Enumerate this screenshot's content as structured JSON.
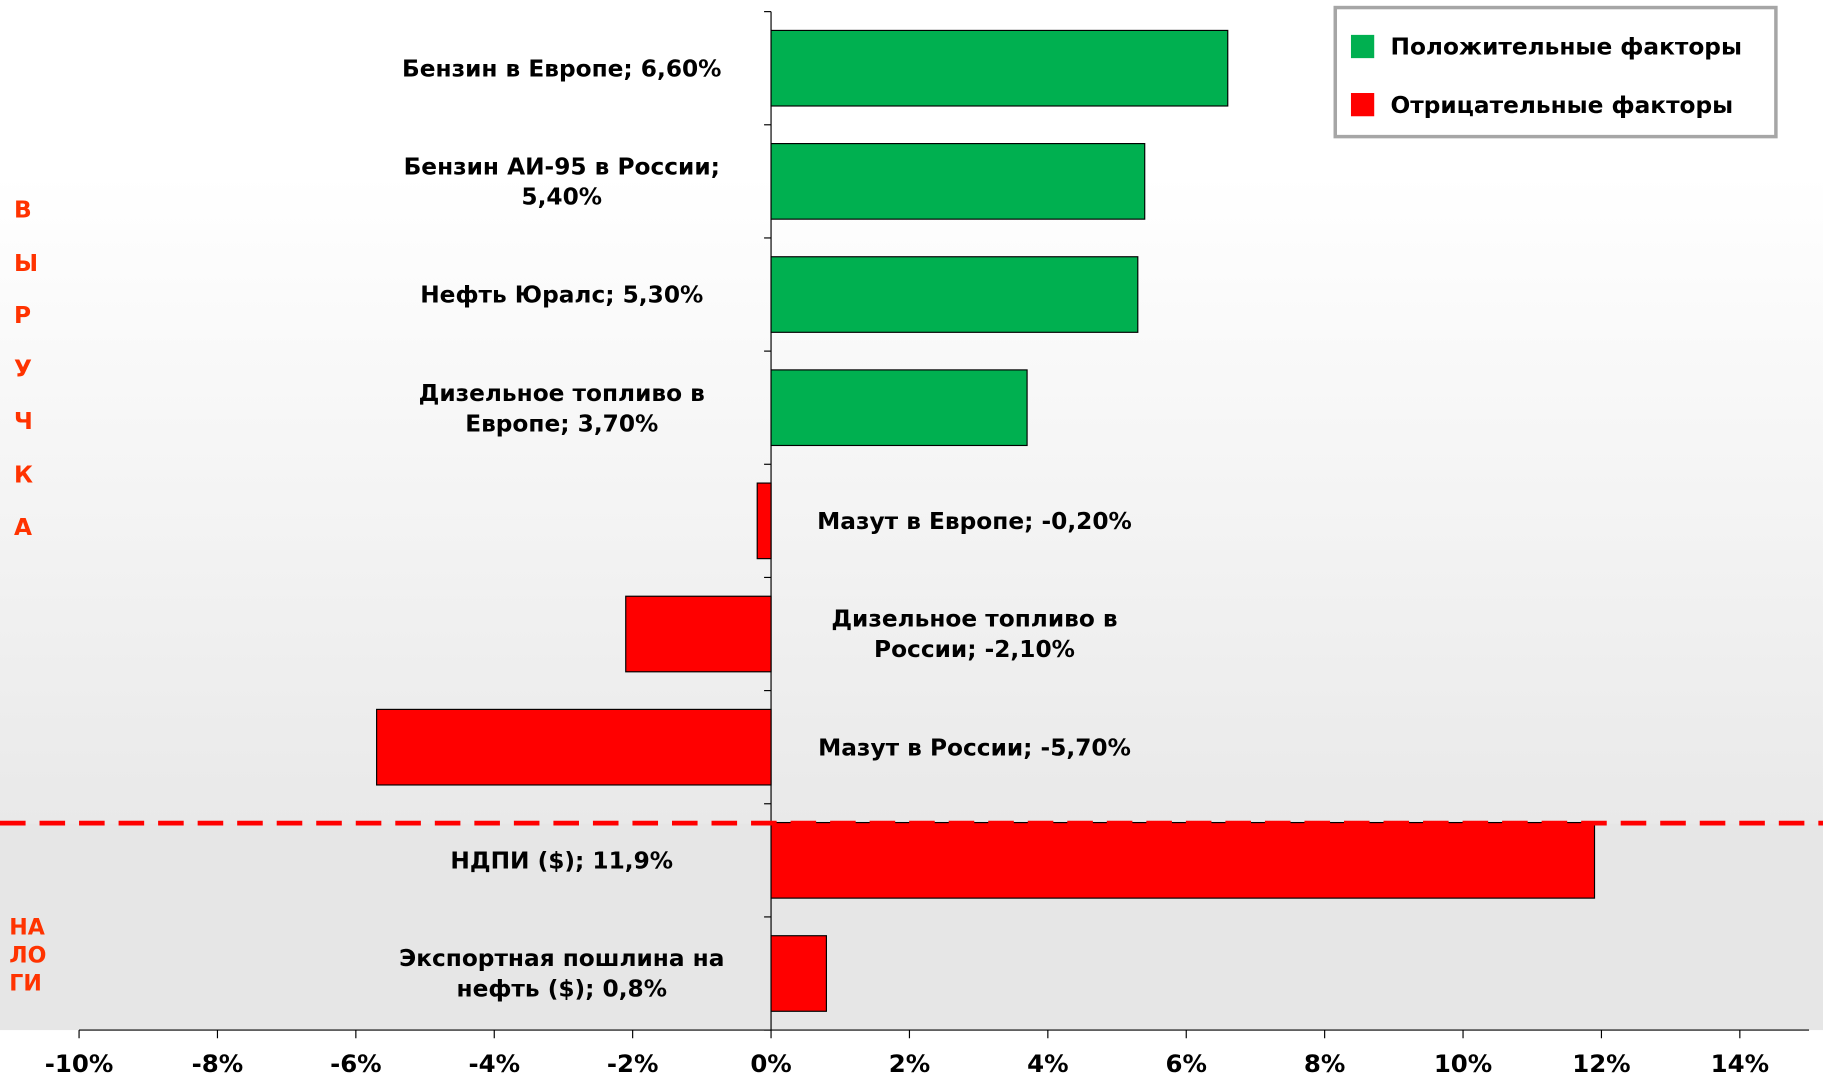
{
  "chart_data": {
    "type": "bar",
    "orientation": "horizontal",
    "categories": [
      "Бензин в Европе; 6,60%",
      "Бензин АИ-95 в России;\n5,40%",
      "Нефть Юралс; 5,30%",
      "Дизельное топливо в\nЕвропе; 3,70%",
      "Мазут в Европе; -0,20%",
      "Дизельное топливо в\nРоссии; -2,10%",
      "Мазут в России; -5,70%",
      "НДПИ ($); 11,9%",
      "Экспортная пошлина на\nнефть ($); 0,8%"
    ],
    "values": [
      6.6,
      5.4,
      5.3,
      3.7,
      -0.2,
      -2.1,
      -5.7,
      11.9,
      0.8
    ],
    "colors": [
      "#00b050",
      "#00b050",
      "#00b050",
      "#00b050",
      "#ff0000",
      "#ff0000",
      "#ff0000",
      "#ff0000",
      "#ff0000"
    ],
    "legend": [
      {
        "label": "Положительные факторы",
        "color": "#00b050"
      },
      {
        "label": "Отрицательные факторы",
        "color": "#ff0000"
      }
    ],
    "groups": [
      "ВЫРУЧКА",
      "НАЛОГИ"
    ],
    "xlim": [
      -10,
      15
    ],
    "xticks": [
      {
        "value": -10,
        "label": "-10%"
      },
      {
        "value": -8,
        "label": "-8%"
      },
      {
        "value": -6,
        "label": "-6%"
      },
      {
        "value": -4,
        "label": "-4%"
      },
      {
        "value": -2,
        "label": "-2%"
      },
      {
        "value": 0,
        "label": "0%"
      },
      {
        "value": 2,
        "label": "2%"
      },
      {
        "value": 4,
        "label": "4%"
      },
      {
        "value": 6,
        "label": "6%"
      },
      {
        "value": 8,
        "label": "8%"
      },
      {
        "value": 10,
        "label": "10%"
      },
      {
        "value": 12,
        "label": "12%"
      },
      {
        "value": 14,
        "label": "14%"
      }
    ]
  }
}
